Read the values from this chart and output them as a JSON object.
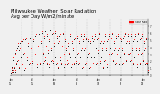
{
  "title": "Milwaukee Weather  Solar Radiation\nAvg per Day W/m2/minute",
  "title_fontsize": 3.8,
  "bg_color": "#f0f0f0",
  "plot_bg": "#f0f0f0",
  "grid_color": "#aaaaaa",
  "dot_color_black": "#000000",
  "dot_color_red": "#ff0000",
  "legend_label": "Solar Rad",
  "legend_color": "#ff0000",
  "ylim": [
    0,
    8
  ],
  "xlim": [
    0,
    760
  ],
  "vline_positions": [
    60,
    120,
    180,
    240,
    300,
    365,
    425,
    485,
    545,
    610,
    670,
    730
  ],
  "xtick_positions": [
    0,
    60,
    120,
    180,
    240,
    300,
    365,
    425,
    485,
    545,
    610,
    670,
    730
  ],
  "xtick_labels": [
    "Jan\n05",
    "",
    "Jul\n05",
    "",
    "Jan\n06",
    "",
    "Jul\n06",
    "",
    "Jan\n07",
    "",
    "Jul\n07",
    "",
    "Jan\n08"
  ],
  "ytick_positions": [
    0,
    1,
    2,
    3,
    4,
    5,
    6,
    7
  ],
  "ytick_labels": [
    "0",
    "1",
    "2",
    "3",
    "4",
    "5",
    "6",
    "7"
  ],
  "x_black": [
    1,
    3,
    5,
    7,
    9,
    11,
    13,
    15,
    18,
    21,
    24,
    27,
    30,
    33,
    36,
    39,
    43,
    47,
    51,
    55,
    60,
    65,
    70,
    76,
    82,
    88,
    94,
    100,
    106,
    112,
    118,
    124,
    130,
    136,
    142,
    148,
    154,
    160,
    165,
    169,
    173,
    177,
    181,
    185,
    188,
    191,
    194,
    197,
    200,
    203,
    206,
    209,
    212,
    215,
    218,
    222,
    226,
    230,
    234,
    238,
    242,
    246,
    250,
    254,
    258,
    262,
    266,
    270,
    274,
    278,
    282,
    286,
    290,
    294,
    298,
    302,
    306,
    310,
    314,
    318,
    322,
    326,
    330,
    334,
    338,
    342,
    346,
    350,
    354,
    358,
    362,
    366,
    370,
    374,
    378,
    382,
    386,
    390,
    394,
    398,
    402,
    406,
    410,
    414,
    418,
    422,
    426,
    430,
    434,
    438,
    442,
    446,
    450,
    454,
    458,
    462,
    466,
    470,
    474,
    478,
    482,
    486,
    490,
    494,
    498,
    502,
    506,
    510,
    514,
    518,
    522,
    526,
    530,
    534,
    538,
    542,
    546,
    550,
    554,
    558,
    562,
    566,
    570,
    574,
    578,
    582,
    586,
    590,
    594,
    598,
    602,
    606,
    610,
    614,
    618,
    622,
    626,
    630,
    634,
    638,
    642,
    646,
    650,
    654,
    658,
    662,
    666,
    670,
    674,
    678,
    682,
    686,
    690,
    694,
    698,
    702,
    706,
    710,
    714,
    718,
    722,
    726,
    730,
    734,
    738,
    742,
    746,
    750,
    754,
    758
  ],
  "y_black": [
    0.3,
    0.5,
    0.8,
    1.2,
    0.4,
    1.8,
    0.6,
    2.2,
    1.0,
    2.8,
    0.5,
    3.2,
    1.5,
    3.8,
    2.0,
    4.2,
    1.0,
    3.5,
    4.5,
    2.5,
    1.2,
    4.8,
    3.0,
    0.8,
    5.0,
    2.2,
    4.2,
    1.5,
    5.2,
    3.5,
    1.8,
    4.8,
    2.8,
    5.5,
    1.2,
    4.0,
    5.8,
    2.5,
    1.5,
    4.5,
    6.0,
    3.0,
    1.8,
    5.2,
    2.2,
    6.2,
    4.0,
    1.5,
    5.5,
    3.2,
    6.5,
    2.8,
    1.2,
    4.8,
    6.3,
    3.5,
    2.0,
    5.8,
    1.8,
    4.2,
    6.0,
    2.5,
    1.5,
    5.2,
    3.8,
    1.0,
    4.5,
    5.5,
    2.2,
    1.5,
    4.0,
    5.8,
    2.8,
    1.2,
    4.8,
    3.5,
    5.5,
    2.0,
    1.5,
    4.2,
    3.0,
    5.5,
    2.5,
    1.2,
    4.5,
    3.5,
    1.5,
    5.0,
    2.5,
    4.0,
    1.8,
    5.2,
    3.0,
    1.5,
    4.5,
    2.5,
    5.5,
    3.5,
    1.0,
    4.8,
    2.8,
    5.5,
    3.5,
    1.5,
    5.0,
    2.5,
    4.8,
    3.0,
    1.0,
    4.5,
    2.5,
    5.2,
    3.5,
    1.5,
    4.8,
    2.5,
    5.5,
    3.8,
    1.5,
    5.0,
    3.2,
    5.8,
    1.8,
    4.5,
    2.5,
    5.2,
    3.5,
    1.0,
    4.5,
    2.0,
    5.5,
    3.5,
    1.2,
    4.8,
    2.8,
    5.5,
    3.8,
    1.5,
    5.0,
    3.0,
    5.8,
    2.0,
    4.5,
    3.5,
    1.5,
    5.2,
    2.8,
    5.5,
    3.5,
    1.5,
    5.0,
    2.5,
    4.8,
    3.5,
    1.5,
    5.2,
    3.0,
    5.8,
    2.0,
    4.5,
    2.8,
    5.5,
    1.5,
    4.5,
    3.0,
    2.0,
    5.5,
    3.5,
    1.5,
    4.8,
    2.5,
    5.5,
    3.5,
    1.2,
    4.8,
    2.8,
    5.8,
    3.5,
    1.5,
    5.0,
    3.0,
    5.5,
    2.0,
    4.5,
    3.5,
    1.5,
    5.0,
    3.5,
    1.5,
    0.5
  ],
  "x_red": [
    2,
    4,
    6,
    8,
    10,
    12,
    14,
    17,
    20,
    23,
    26,
    29,
    32,
    35,
    38,
    41,
    45,
    49,
    53,
    57,
    63,
    68,
    73,
    79,
    85,
    91,
    97,
    103,
    109,
    115,
    121,
    127,
    133,
    139,
    145,
    151,
    157,
    162,
    166,
    170,
    174,
    178,
    182,
    186,
    189,
    192,
    195,
    198,
    201,
    204,
    207,
    210,
    213,
    216,
    220,
    224,
    228,
    232,
    236,
    240,
    244,
    248,
    252,
    256,
    260,
    264,
    268,
    272,
    276,
    280,
    284,
    288,
    292,
    296,
    300,
    304,
    308,
    312,
    316,
    320,
    324,
    328,
    332,
    336,
    340,
    344,
    348,
    352,
    356,
    360,
    364,
    368,
    372,
    376,
    380,
    384,
    388,
    392,
    396,
    400,
    404,
    408,
    412,
    416,
    420,
    424,
    428,
    432,
    436,
    440,
    444,
    448,
    452,
    456,
    460,
    464,
    468,
    472,
    476,
    480,
    484,
    488,
    492,
    496,
    500,
    504,
    508,
    512,
    516,
    520,
    524,
    528,
    532,
    536,
    540,
    544,
    548,
    552,
    556,
    560,
    564,
    568,
    572,
    576,
    580,
    584,
    588,
    592,
    596,
    600,
    604,
    608,
    612,
    616,
    620,
    624,
    628,
    632,
    636,
    640,
    644,
    648,
    652,
    656,
    660,
    664,
    668,
    672,
    676,
    680,
    684,
    688,
    692,
    696,
    700,
    704,
    708,
    712,
    716,
    720,
    724,
    728,
    732,
    736,
    740,
    744,
    748,
    752,
    756,
    760
  ],
  "y_red": [
    0.4,
    0.6,
    1.0,
    1.5,
    0.5,
    2.0,
    0.8,
    2.5,
    1.2,
    3.0,
    0.8,
    3.5,
    1.8,
    4.0,
    2.2,
    4.5,
    1.2,
    3.8,
    4.8,
    2.8,
    1.5,
    5.0,
    3.2,
    1.0,
    5.2,
    2.5,
    4.5,
    1.8,
    5.5,
    3.8,
    2.0,
    5.0,
    3.0,
    5.8,
    1.5,
    4.2,
    6.0,
    2.8,
    1.8,
    4.8,
    6.2,
    3.2,
    2.0,
    5.5,
    2.5,
    6.5,
    4.2,
    1.8,
    5.8,
    3.5,
    6.8,
    3.0,
    1.5,
    5.0,
    6.5,
    3.8,
    2.2,
    6.0,
    2.0,
    4.5,
    6.2,
    2.8,
    1.8,
    5.5,
    4.0,
    1.2,
    4.8,
    5.8,
    2.5,
    1.8,
    4.2,
    6.0,
    3.0,
    1.5,
    5.0,
    3.8,
    5.8,
    2.2,
    1.8,
    4.5,
    3.2,
    5.8,
    2.8,
    1.5,
    4.8,
    3.8,
    1.8,
    5.2,
    2.8,
    4.2,
    2.0,
    5.5,
    3.2,
    1.8,
    4.8,
    2.8,
    5.8,
    3.8,
    1.2,
    5.0,
    3.0,
    5.8,
    3.8,
    1.8,
    5.2,
    2.8,
    5.0,
    3.2,
    1.2,
    4.8,
    2.8,
    5.5,
    3.8,
    1.8,
    5.0,
    2.8,
    5.8,
    4.0,
    1.8,
    5.2,
    3.5,
    6.0,
    2.0,
    4.8,
    2.8,
    5.5,
    3.8,
    1.2,
    4.8,
    2.2,
    5.8,
    3.8,
    1.5,
    5.0,
    3.0,
    5.8,
    4.0,
    1.8,
    5.2,
    3.2,
    6.0,
    2.2,
    4.8,
    3.8,
    1.8,
    5.5,
    3.0,
    5.8,
    3.8,
    1.8,
    5.2,
    2.8,
    5.0,
    3.8,
    1.8,
    5.5,
    3.2,
    6.0,
    2.2,
    4.8,
    3.0,
    5.8,
    1.8,
    4.8,
    3.2,
    2.2,
    5.8,
    3.8,
    1.8,
    5.0,
    2.8,
    5.8,
    3.8,
    1.5,
    5.0,
    3.0,
    6.0,
    3.8,
    1.8,
    5.2,
    3.2,
    5.8,
    2.2,
    4.8,
    3.8,
    1.8,
    5.2,
    3.8,
    1.8,
    0.8
  ]
}
